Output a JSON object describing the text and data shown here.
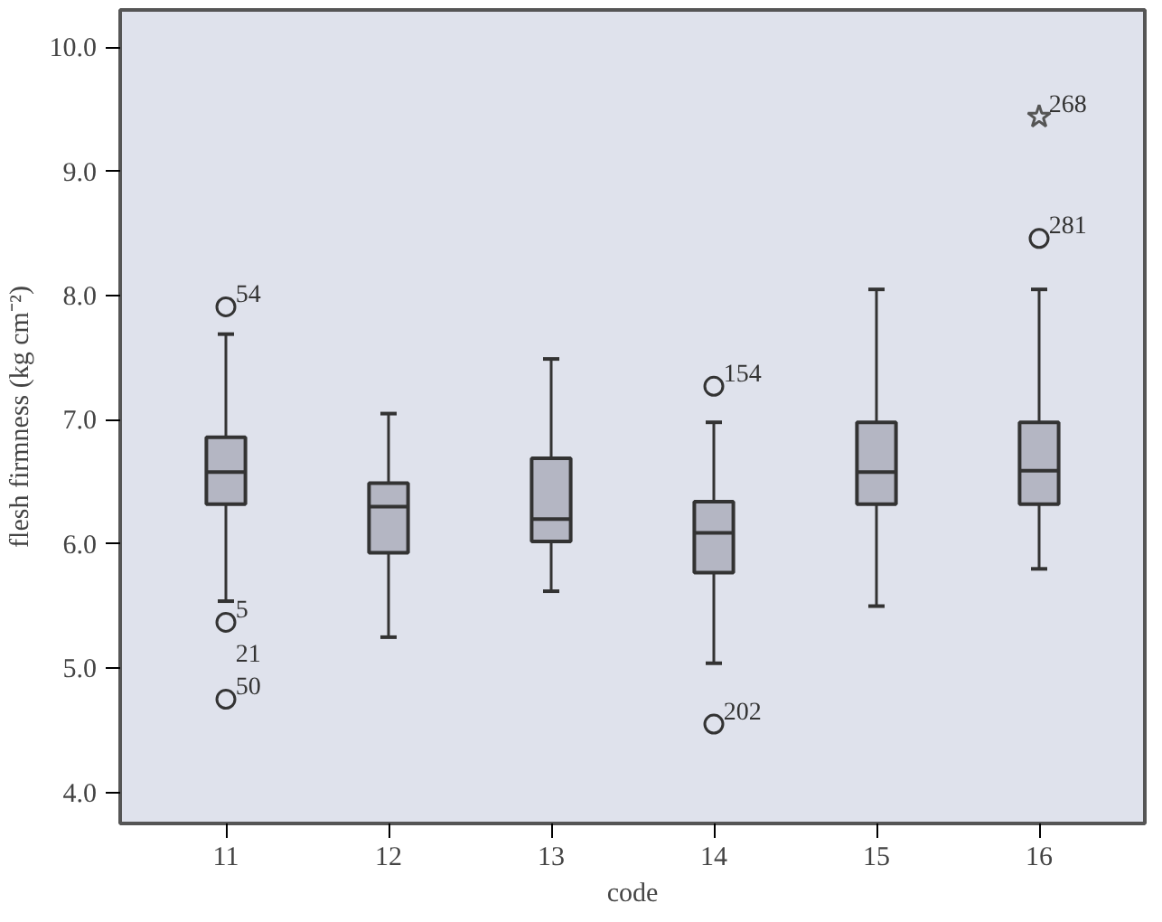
{
  "chart_data": {
    "type": "box",
    "xlabel": "code",
    "ylabel": "flesh firmness (kg cm⁻²)",
    "categories": [
      "11",
      "12",
      "13",
      "14",
      "15",
      "16"
    ],
    "ylim": [
      3.75,
      10.3
    ],
    "yticks": [
      {
        "value": 4,
        "label": "4.0"
      },
      {
        "value": 5,
        "label": "5.0"
      },
      {
        "value": 6,
        "label": "6.0"
      },
      {
        "value": 7,
        "label": "7.0"
      },
      {
        "value": 8,
        "label": "8.0"
      },
      {
        "value": 9,
        "label": "9.0"
      },
      {
        "value": 10,
        "label": "10.0"
      }
    ],
    "grid": false,
    "series": [
      {
        "color": "#b4b6c3",
        "boxes": [
          {
            "low": 5.54,
            "q1": 6.32,
            "median": 6.58,
            "q3": 6.86,
            "high": 7.69
          },
          {
            "low": 5.25,
            "q1": 5.93,
            "median": 6.3,
            "q3": 6.49,
            "high": 7.05
          },
          {
            "low": 5.62,
            "q1": 6.02,
            "median": 6.2,
            "q3": 6.69,
            "high": 7.49
          },
          {
            "low": 5.04,
            "q1": 5.77,
            "median": 6.09,
            "q3": 6.34,
            "high": 6.98
          },
          {
            "low": 5.5,
            "q1": 6.32,
            "median": 6.58,
            "q3": 6.98,
            "high": 8.05
          },
          {
            "low": 5.8,
            "q1": 6.32,
            "median": 6.59,
            "q3": 6.98,
            "high": 8.05
          }
        ]
      },
      {
        "type": "scatter",
        "marker": "circle",
        "x": [
          "11",
          "11",
          "11",
          "14",
          "14",
          "16"
        ],
        "values": [
          7.91,
          5.37,
          4.75,
          7.27,
          4.55,
          8.46
        ],
        "color": "#333333"
      },
      {
        "type": "scatter",
        "marker": "star",
        "x": [
          "16"
        ],
        "values": [
          9.44
        ],
        "color": "#555555"
      }
    ],
    "annotations": [
      {
        "text": "54",
        "x": "11",
        "y": 7.91
      },
      {
        "text": "5",
        "x": "11",
        "y": 5.37
      },
      {
        "text": "21",
        "x": "11",
        "y": 5.37
      },
      {
        "text": "50",
        "x": "11",
        "y": 4.75
      },
      {
        "text": "154",
        "x": "14",
        "y": 7.27
      },
      {
        "text": "202",
        "x": "14",
        "y": 4.55
      },
      {
        "text": "281",
        "x": "16",
        "y": 8.46
      },
      {
        "text": "268",
        "x": "16",
        "y": 9.44
      }
    ]
  }
}
